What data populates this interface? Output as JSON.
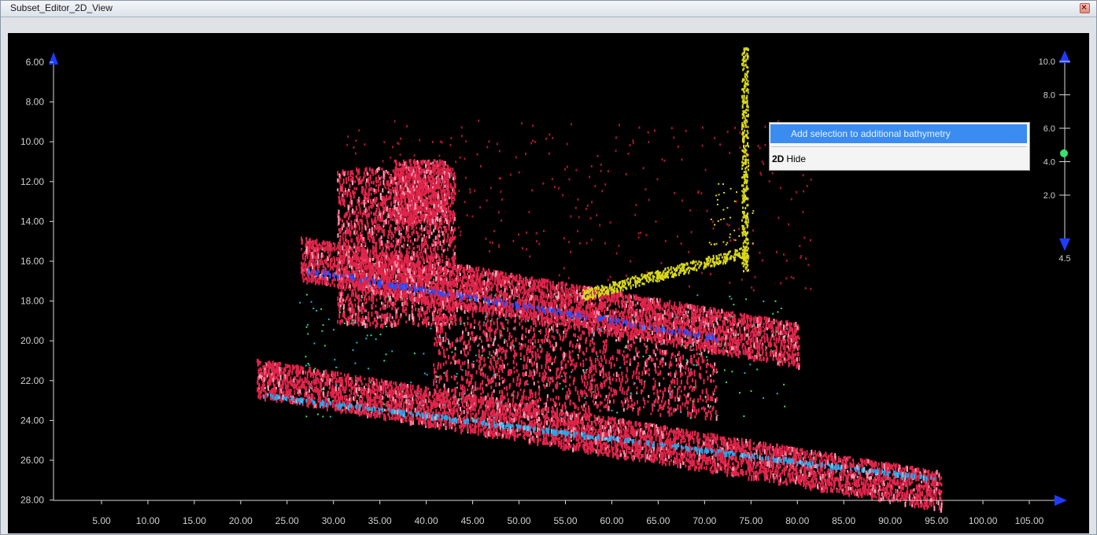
{
  "window": {
    "title": "Subset_Editor_2D_View",
    "close_icon": "close-icon"
  },
  "context_menu": {
    "items": [
      {
        "label": "Add selection to additional bathymetry",
        "prefix": ""
      },
      {
        "prefix": "2D",
        "label": "Hide"
      }
    ]
  },
  "x_axis": {
    "ticks": [
      "5.00",
      "10.00",
      "15.00",
      "20.00",
      "25.00",
      "30.00",
      "35.00",
      "40.00",
      "45.00",
      "50.00",
      "55.00",
      "60.00",
      "65.00",
      "70.00",
      "75.00",
      "80.00",
      "85.00",
      "90.00",
      "95.00",
      "100.00",
      "105.00"
    ]
  },
  "y_axis": {
    "ticks": [
      "6.00",
      "8.00",
      "10.00",
      "12.00",
      "14.00",
      "16.00",
      "18.00",
      "20.00",
      "22.00",
      "24.00",
      "26.00",
      "28.00"
    ]
  },
  "scale_bar": {
    "ticks": [
      "10.0",
      "8.0",
      "6.0",
      "4.0",
      "2.0"
    ],
    "bottom_value": "4.5",
    "handle_value": 4.5
  },
  "colors": {
    "soundings": "#e0244a",
    "highlight": "#ff9fb4",
    "track": "#2aa6e8",
    "blue": "#2a4cff",
    "vertical": "#d9d81a",
    "green": "#3be06c",
    "arrows": "#1e3cff"
  }
}
